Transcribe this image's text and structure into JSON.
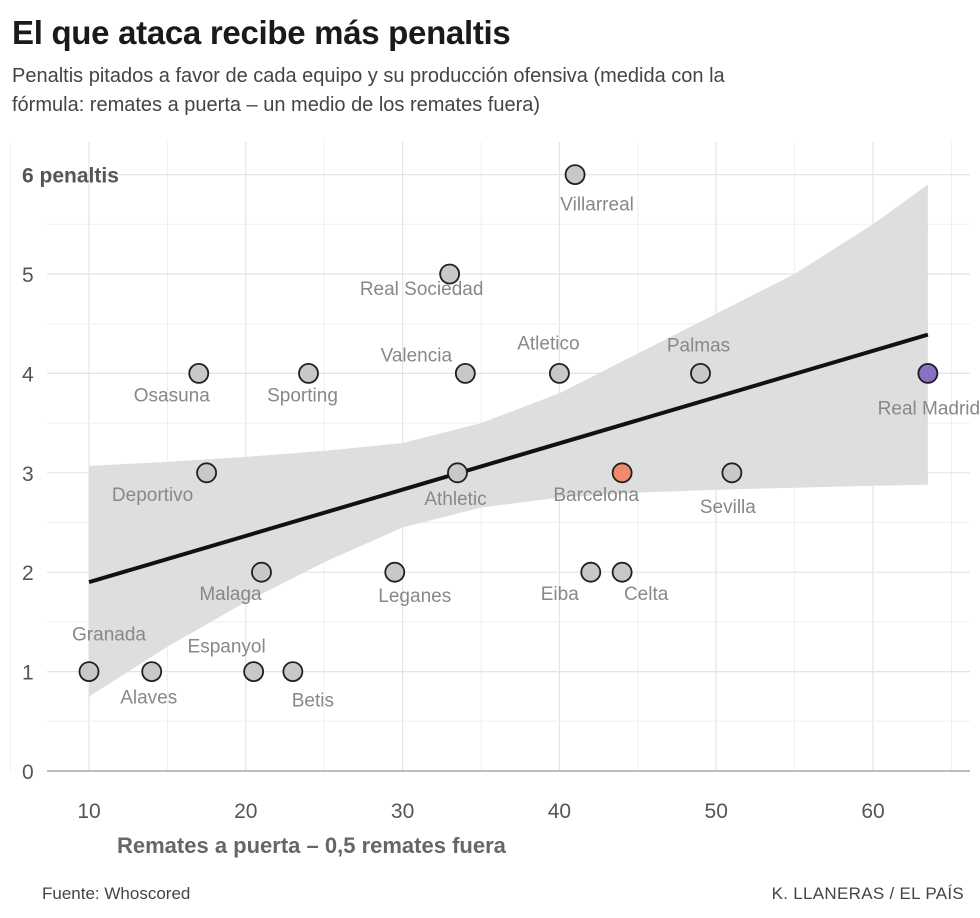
{
  "header": {
    "title": "El que ataca recibe más penaltis",
    "subtitle": "Penaltis pitados a favor de cada equipo y su producción ofensiva (medida con la fórmula: remates a puerta – un medio de los remates fuera)"
  },
  "footer": {
    "source": "Fuente: Whoscored",
    "credit": "K. LLANERAS  /  EL PAÍS"
  },
  "colors": {
    "point_default": "#c8c8c8",
    "point_barcelona": "#f08a6e",
    "point_real_madrid": "#8a6fc4",
    "regression_line": "#111111",
    "confidence_band": "#dedede"
  },
  "chart_data": {
    "type": "scatter",
    "title": "El que ataca recibe más penaltis",
    "xlabel": "Remates a puerta – 0,5 remates fuera",
    "ylabel": "",
    "xlim": [
      7.3,
      65.3
    ],
    "ylim": [
      0,
      6.1
    ],
    "x_ticks": [
      10,
      20,
      30,
      40,
      50,
      60
    ],
    "y_ticks": [
      0,
      1,
      2,
      3,
      4,
      5
    ],
    "y_top_label": "6 penaltis",
    "points": [
      {
        "team": "Villarreal",
        "x": 41,
        "y": 6
      },
      {
        "team": "Real Sociedad",
        "x": 33,
        "y": 5
      },
      {
        "team": "Osasuna",
        "x": 17,
        "y": 4
      },
      {
        "team": "Sporting",
        "x": 24,
        "y": 4
      },
      {
        "team": "Valencia",
        "x": 34,
        "y": 4
      },
      {
        "team": "Atletico",
        "x": 40,
        "y": 4
      },
      {
        "team": "Palmas",
        "x": 49,
        "y": 4
      },
      {
        "team": "Real Madrid",
        "x": 63.5,
        "y": 4,
        "highlight": "real_madrid"
      },
      {
        "team": "Deportivo",
        "x": 17.5,
        "y": 3
      },
      {
        "team": "Athletic",
        "x": 33.5,
        "y": 3
      },
      {
        "team": "Barcelona",
        "x": 44,
        "y": 3,
        "highlight": "barcelona"
      },
      {
        "team": "Sevilla",
        "x": 51,
        "y": 3
      },
      {
        "team": "Malaga",
        "x": 21,
        "y": 2
      },
      {
        "team": "Leganes",
        "x": 29.5,
        "y": 2
      },
      {
        "team": "Eiba",
        "x": 42,
        "y": 2
      },
      {
        "team": "Celta",
        "x": 44,
        "y": 2
      },
      {
        "team": "Granada",
        "x": 10,
        "y": 1
      },
      {
        "team": "Alaves",
        "x": 14,
        "y": 1
      },
      {
        "team": "Espanyol",
        "x": 20.5,
        "y": 1
      },
      {
        "team": "Betis",
        "x": 23,
        "y": 1
      }
    ],
    "regression": {
      "x_start": 10,
      "y_start": 1.9,
      "x_end": 63.5,
      "y_end": 4.39
    },
    "confidence_band": {
      "x": [
        10,
        15,
        20,
        25,
        30,
        35,
        40,
        45,
        50,
        55,
        60,
        63.5
      ],
      "lower": [
        0.75,
        1.25,
        1.7,
        2.1,
        2.45,
        2.65,
        2.75,
        2.8,
        2.83,
        2.85,
        2.87,
        2.88
      ],
      "upper": [
        3.07,
        3.11,
        3.16,
        3.22,
        3.3,
        3.5,
        3.8,
        4.2,
        4.6,
        5.0,
        5.5,
        5.9
      ]
    }
  }
}
